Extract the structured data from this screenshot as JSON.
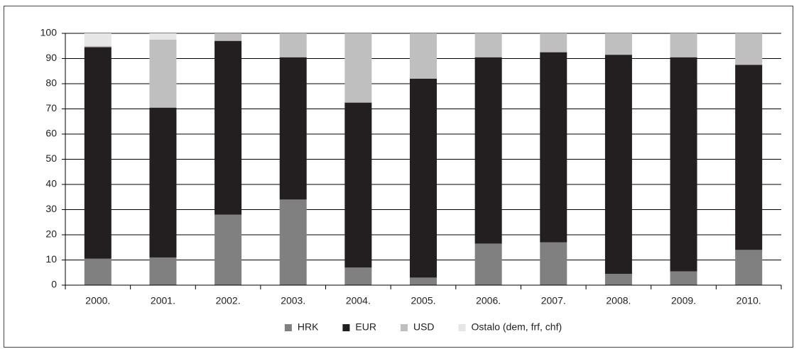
{
  "chart_data": {
    "type": "stacked_bar",
    "categories": [
      "2000.",
      "2001.",
      "2002.",
      "2003.",
      "2004.",
      "2005.",
      "2006.",
      "2007.",
      "2008.",
      "2009.",
      "2010."
    ],
    "series": [
      {
        "name": "HRK",
        "color": "#808080",
        "values": [
          10.5,
          11,
          28,
          34,
          7,
          3,
          16.5,
          17,
          4.5,
          5.5,
          14
        ]
      },
      {
        "name": "EUR",
        "color": "#231f20",
        "values": [
          84,
          59.5,
          69,
          56.5,
          65.5,
          79,
          74,
          75.5,
          87,
          85,
          73.5
        ]
      },
      {
        "name": "USD",
        "color": "#bfbfbf",
        "values": [
          0.5,
          27,
          3,
          9.5,
          27.5,
          18,
          9.5,
          7.5,
          8.5,
          9.5,
          12.5
        ]
      },
      {
        "name": "Ostalo (dem, frf, chf)",
        "color": "#e6e6e6",
        "values": [
          5,
          2.5,
          0,
          0,
          0,
          0,
          0,
          0,
          0,
          0,
          0
        ]
      }
    ],
    "ylim": [
      0,
      100
    ],
    "yticks": [
      0,
      10,
      20,
      30,
      40,
      50,
      60,
      70,
      80,
      90,
      100
    ],
    "grid": true,
    "legend": "bottom"
  }
}
